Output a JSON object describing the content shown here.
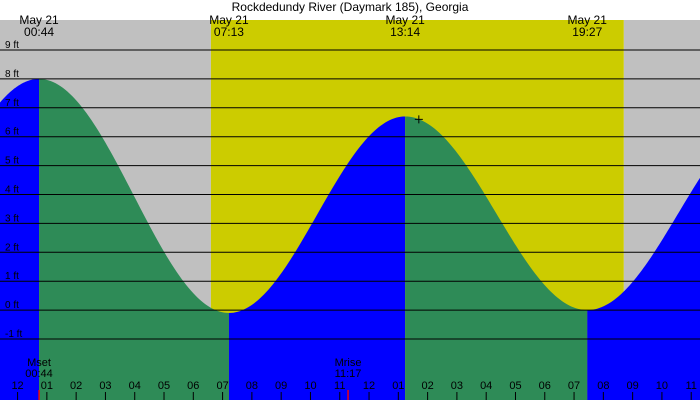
{
  "chart_data": {
    "type": "area",
    "title": "Rockdedundy River (Daymark 185), Georgia",
    "y_unit": "ft",
    "y_ticks": [
      -1,
      0,
      1,
      2,
      3,
      4,
      5,
      6,
      7,
      8,
      9
    ],
    "y_tick_labels": [
      "-1 ft",
      "0 ft",
      "1 ft",
      "2 ft",
      "3 ft",
      "4 ft",
      "5 ft",
      "6 ft",
      "7 ft",
      "8 ft",
      "9 ft"
    ],
    "ylim": [
      -1,
      9
    ],
    "x_range_hours": [
      -0.6,
      23.3
    ],
    "x_ticks": [
      0,
      1,
      2,
      3,
      4,
      5,
      6,
      7,
      8,
      9,
      10,
      11,
      12,
      13,
      14,
      15,
      16,
      17,
      18,
      19,
      20,
      21,
      22,
      23
    ],
    "x_tick_labels": [
      "12",
      "01",
      "02",
      "03",
      "04",
      "05",
      "06",
      "07",
      "08",
      "09",
      "10",
      "11",
      "12",
      "01",
      "02",
      "03",
      "04",
      "05",
      "06",
      "07",
      "08",
      "09",
      "10",
      "11"
    ],
    "x_tick_labels_partial": [
      {
        "hour": -1,
        "label": "11"
      }
    ],
    "daylight": {
      "sunrise_hour": 6.6,
      "sunset_hour": 20.7
    },
    "tides": [
      {
        "type": "high",
        "date": "May 21",
        "time": "00:44",
        "hour": 0.733,
        "height": 8.0
      },
      {
        "type": "low",
        "date": "May 21",
        "time": "07:13",
        "hour": 7.217,
        "height": -0.1
      },
      {
        "type": "high",
        "date": "May 21",
        "time": "13:14",
        "hour": 13.233,
        "height": 6.7
      },
      {
        "type": "low",
        "date": "May 21",
        "time": "19:27",
        "hour": 19.45,
        "height": 0.0
      }
    ],
    "moon_events": [
      {
        "label": "Mset",
        "time": "00:44",
        "hour": 0.733
      },
      {
        "label": "Mrise",
        "time": "11:17",
        "hour": 11.283
      }
    ],
    "current_marker": {
      "hour": 13.7,
      "height": 6.6
    },
    "colors": {
      "night": "#c0c0c0",
      "day": "#cccc00",
      "rising": "#0000ff",
      "falling": "#2e8b57",
      "gridline": "#000000",
      "moon_tick": "#ff0000"
    }
  }
}
